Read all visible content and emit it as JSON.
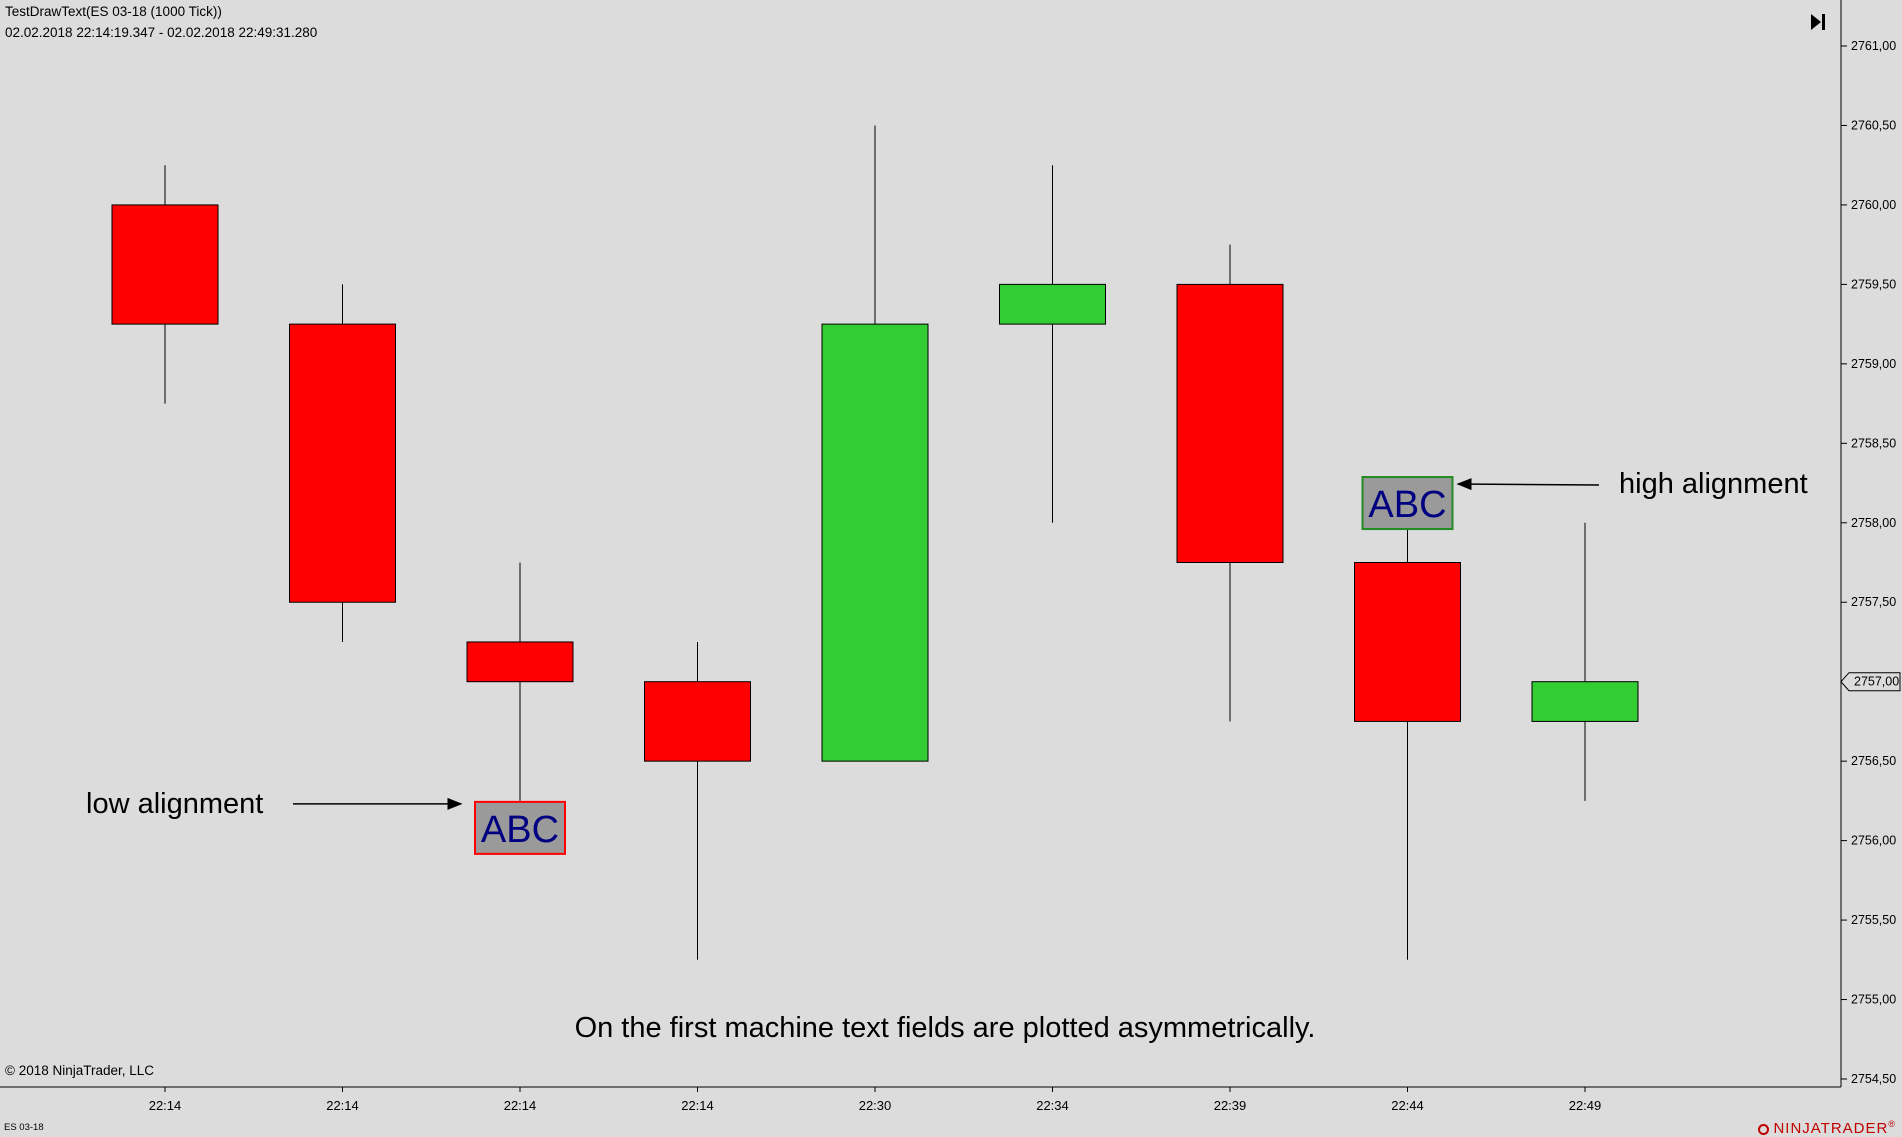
{
  "window": {
    "title": "TestDrawText(ES 03-18 (1000 Tick))",
    "date_range": "02.02.2018 22:14:19.347 - 02.02.2018 22:49:31.280",
    "copyright": "© 2018 NinjaTrader, LLC",
    "instrument": "ES 03-18",
    "logo_text": "NINJATRADER",
    "logo_mark": "®",
    "nav_icon": "jump-to-end-icon"
  },
  "chart_data": {
    "type": "candlestick",
    "title": "",
    "xlabel": "",
    "ylabel": "",
    "ylim": [
      2754.5,
      2761.0
    ],
    "y_ticks": [
      "2754,50",
      "2755,00",
      "2755,50",
      "2756,00",
      "2756,50",
      "2757,00",
      "2757,50",
      "2758,00",
      "2758,50",
      "2759,00",
      "2759,50",
      "2760,00",
      "2760,50",
      "2761,00"
    ],
    "current_price_label": "2757,00",
    "current_price": 2757.0,
    "categories": [
      "22:14",
      "22:14",
      "22:14",
      "22:14",
      "22:30",
      "22:34",
      "22:39",
      "22:44",
      "22:49"
    ],
    "candles": [
      {
        "time": "22:14",
        "open": 2760.0,
        "high": 2760.25,
        "low": 2758.75,
        "close": 2759.25
      },
      {
        "time": "22:14",
        "open": 2759.25,
        "high": 2759.5,
        "low": 2757.25,
        "close": 2757.5
      },
      {
        "time": "22:14",
        "open": 2757.25,
        "high": 2757.75,
        "low": 2756.25,
        "close": 2757.0
      },
      {
        "time": "22:14",
        "open": 2757.0,
        "high": 2757.25,
        "low": 2755.25,
        "close": 2756.5
      },
      {
        "time": "22:30",
        "open": 2756.5,
        "high": 2760.5,
        "low": 2756.5,
        "close": 2759.25
      },
      {
        "time": "22:34",
        "open": 2759.25,
        "high": 2760.25,
        "low": 2758.0,
        "close": 2759.5
      },
      {
        "time": "22:39",
        "open": 2759.5,
        "high": 2759.75,
        "low": 2756.75,
        "close": 2757.75
      },
      {
        "time": "22:44",
        "open": 2757.75,
        "high": 2758.25,
        "low": 2755.25,
        "close": 2756.75
      },
      {
        "time": "22:49",
        "open": 2756.75,
        "high": 2758.0,
        "low": 2756.25,
        "close": 2757.0
      }
    ],
    "colors": {
      "up": "#32cd32",
      "down": "#ff0000",
      "wick": "#000000",
      "background": "#dcdcdc"
    },
    "annotations": {
      "low_label": "low alignment",
      "high_label": "high alignment",
      "text_box": "ABC",
      "low_box_fill": "#9a9a9a",
      "low_box_border": "#ff0000",
      "high_box_fill": "#9a9a9a",
      "high_box_border": "#228b22",
      "text_color": "#000080",
      "caption": "On the first machine text fields are plotted asymmetrically."
    }
  }
}
